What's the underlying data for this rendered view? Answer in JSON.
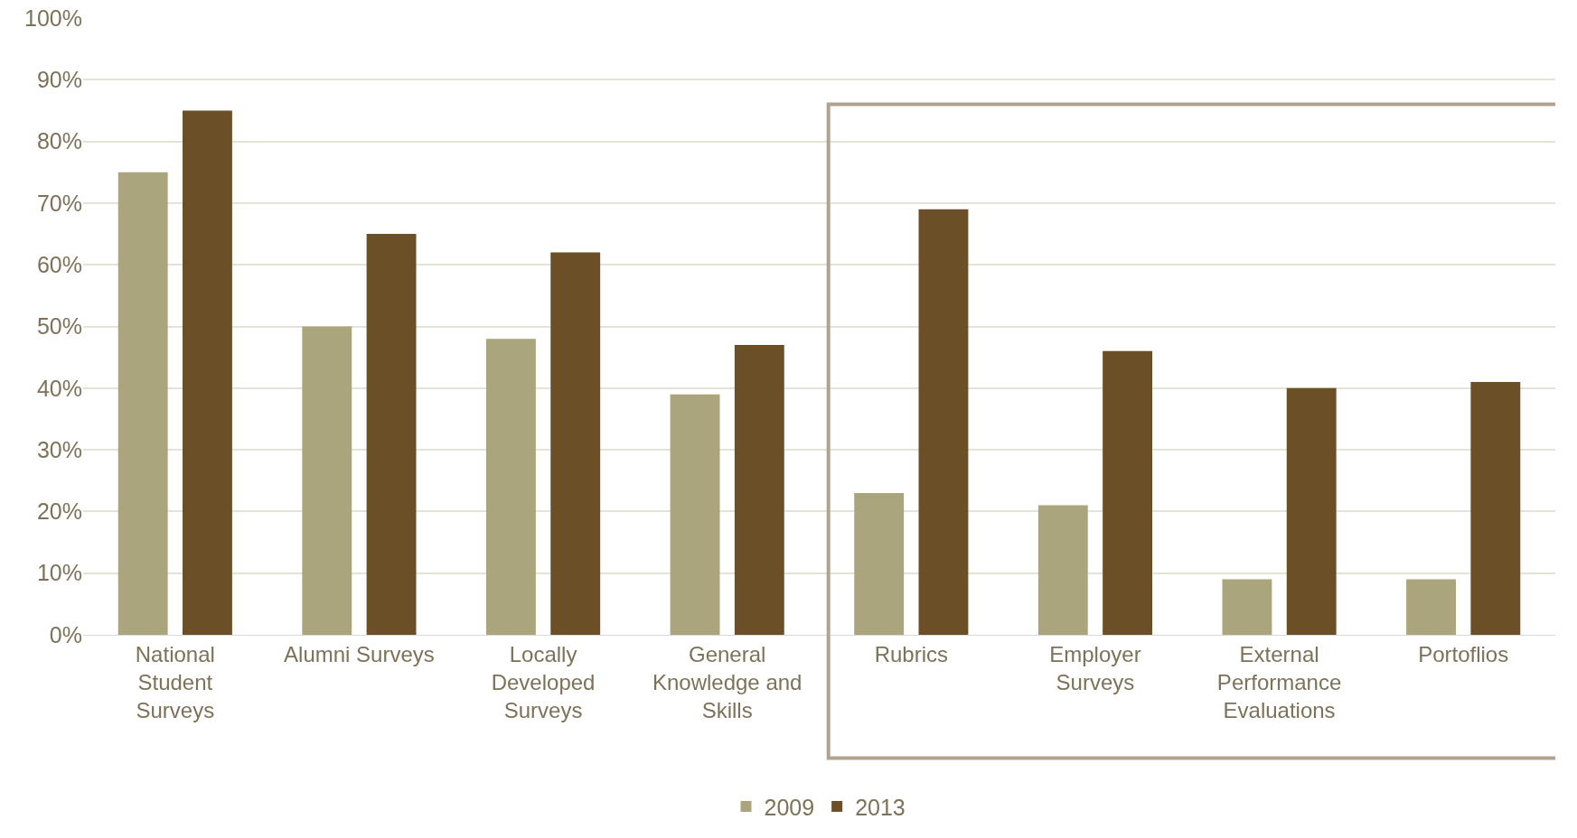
{
  "chart_data": {
    "type": "bar",
    "categories": [
      "National Student Surveys",
      "Alumni Surveys",
      "Locally Developed Surveys",
      "General Knowledge and Skills",
      "Rubrics",
      "Employer Surveys",
      "External Performance Evaluations",
      "Portoflios"
    ],
    "series": [
      {
        "name": "2009",
        "color": "#aba57d",
        "values": [
          75,
          50,
          48,
          39,
          23,
          21,
          9,
          9
        ]
      },
      {
        "name": "2013",
        "color": "#6b5027",
        "values": [
          85,
          65,
          62,
          47,
          69,
          46,
          40,
          41
        ]
      }
    ],
    "ylim": [
      0,
      100
    ],
    "yticks": [
      {
        "value": 0,
        "label": "0%"
      },
      {
        "value": 10,
        "label": "10%"
      },
      {
        "value": 20,
        "label": "20%"
      },
      {
        "value": 30,
        "label": "30%"
      },
      {
        "value": 40,
        "label": "40%"
      },
      {
        "value": 50,
        "label": "50%"
      },
      {
        "value": 60,
        "label": "60%"
      },
      {
        "value": 70,
        "label": "70%"
      },
      {
        "value": 80,
        "label": "80%"
      },
      {
        "value": 90,
        "label": "90%"
      },
      {
        "value": 100,
        "label": "100%"
      }
    ],
    "grid": "y",
    "legend": "bottom"
  }
}
